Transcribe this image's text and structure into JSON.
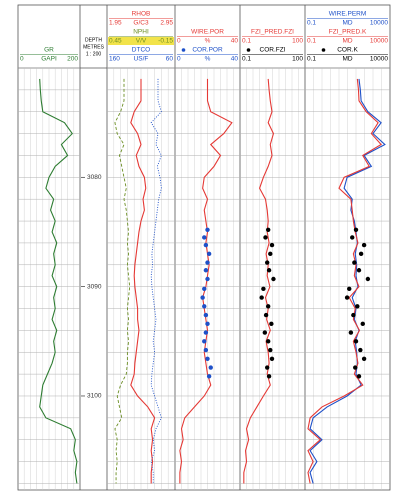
{
  "chart_data": {
    "type": "well-log",
    "ylim": [
      3070,
      3108.6
    ],
    "yticks": [
      3080,
      3090,
      3100
    ],
    "ygrid": [
      3070,
      3072,
      3074,
      3076,
      3078,
      3080,
      3082,
      3084,
      3086,
      3088,
      3090,
      3092,
      3094,
      3096,
      3098,
      3100,
      3102,
      3104,
      3106,
      3108
    ],
    "depth_header": [
      "DEPTH",
      "METRES",
      "1 : 200"
    ],
    "y": [
      3071,
      3072,
      3073,
      3074,
      3075,
      3076,
      3077,
      3078,
      3079,
      3080,
      3081,
      3082,
      3083,
      3084,
      3085,
      3086,
      3087,
      3088,
      3089,
      3090,
      3091,
      3092,
      3093,
      3094,
      3095,
      3096,
      3097,
      3098,
      3099,
      3100,
      3101,
      3102,
      3103,
      3104,
      3105,
      3106,
      3107,
      3108
    ],
    "tracks": [
      {
        "curves": [
          {
            "name": "GR",
            "unit": "GAPI",
            "xlim": [
              0,
              200
            ],
            "color": "#2e7d32",
            "style": "solid",
            "values": [
              70,
              72,
              75,
              80,
              150,
              175,
              140,
              160,
              120,
              100,
              90,
              115,
              105,
              120,
              110,
              125,
              115,
              120,
              110,
              125,
              115,
              120,
              110,
              125,
              115,
              120,
              110,
              95,
              80,
              75,
              70,
              90,
              170,
              185,
              180,
              190,
              185,
              190
            ]
          }
        ]
      },
      {
        "curves": [
          {
            "name": "RHOB",
            "unit": "G/C3",
            "xlim": [
              1.95,
              2.95
            ],
            "color": "#e53935",
            "style": "solid",
            "values": [
              2.45,
              2.45,
              2.45,
              2.35,
              2.3,
              2.4,
              2.45,
              2.38,
              2.42,
              2.5,
              2.52,
              2.48,
              2.5,
              2.45,
              2.42,
              2.4,
              2.38,
              2.36,
              2.35,
              2.36,
              2.38,
              2.4,
              2.4,
              2.42,
              2.4,
              2.38,
              2.36,
              2.35,
              2.3,
              2.4,
              2.55,
              2.65,
              2.6,
              2.62,
              2.6,
              2.62,
              2.6,
              2.6
            ]
          },
          {
            "name": "NPHI",
            "unit": "V/V",
            "xlim": [
              0.45,
              -0.15
            ],
            "color": "#6b8e23",
            "style": "dashed",
            "header_fill": "#f2e34a",
            "values": [
              0.3,
              0.3,
              0.3,
              0.33,
              0.38,
              0.36,
              0.3,
              0.34,
              0.32,
              0.3,
              0.28,
              0.3,
              0.28,
              0.27,
              0.26,
              0.27,
              0.26,
              0.27,
              0.26,
              0.25,
              0.26,
              0.27,
              0.26,
              0.27,
              0.26,
              0.27,
              0.27,
              0.28,
              0.33,
              0.36,
              0.34,
              0.32,
              0.38,
              0.36,
              0.37,
              0.36,
              0.37,
              0.37
            ]
          },
          {
            "name": "DTCO",
            "unit": "US/F",
            "xlim": [
              160,
              60
            ],
            "color": "#1e50c8",
            "style": "dotted",
            "values": [
              85,
              85,
              85,
              80,
              95,
              85,
              88,
              80,
              86,
              82,
              80,
              84,
              86,
              88,
              90,
              92,
              94,
              93,
              95,
              94,
              92,
              90,
              88,
              90,
              92,
              90,
              92,
              94,
              95,
              90,
              85,
              80,
              88,
              92,
              90,
              95,
              92,
              92
            ]
          }
        ]
      },
      {
        "curves": [
          {
            "name": "WIRE.POR",
            "unit": "%",
            "xlim": [
              0,
              40
            ],
            "color": "#e53935",
            "style": "solid",
            "values": [
              20,
              20,
              20,
              22,
              35,
              30,
              22,
              28,
              24,
              18,
              17,
              20,
              18,
              19,
              20,
              19,
              20,
              21,
              20,
              19,
              17,
              18,
              19,
              20,
              19,
              18,
              19,
              20,
              22,
              18,
              12,
              6,
              4,
              5,
              3,
              4,
              3,
              3
            ]
          },
          {
            "name": "COR.POR",
            "unit": "%",
            "xlim": [
              0,
              40
            ],
            "color": "#1e50c8",
            "style": "points",
            "depth": [
              3084.8,
              3085.5,
              3086.2,
              3087,
              3087.8,
              3088.5,
              3089.3,
              3090.2,
              3091,
              3091.8,
              3092.6,
              3093.4,
              3094.2,
              3095,
              3095.8,
              3096.6,
              3097.4,
              3098.2
            ],
            "values": [
              20,
              18,
              19,
              21,
              20,
              19,
              20,
              18,
              17,
              18,
              19,
              20,
              19,
              18,
              19,
              20,
              22,
              21
            ]
          }
        ]
      },
      {
        "curves": [
          {
            "name": "FZI_PRED.FZI",
            "xlim": [
              0.1,
              100
            ],
            "log": true,
            "color": "#e53935",
            "style": "solid",
            "values": [
              2,
              2.2,
              2.5,
              3,
              2,
              3.5,
              2.5,
              3,
              2,
              1.2,
              0.8,
              1.5,
              1.8,
              2,
              1.8,
              2.2,
              1.6,
              2,
              1.8,
              2.4,
              1.5,
              2,
              1.7,
              2.5,
              1.6,
              2,
              2.2,
              1.8,
              2.5,
              1.2,
              0.6,
              0.3,
              0.2,
              0.25,
              0.18,
              0.2,
              0.15,
              0.15
            ]
          },
          {
            "name": "COR.FZI",
            "xlim": [
              0.1,
              100
            ],
            "log": true,
            "color": "#000000",
            "style": "points",
            "depth": [
              3084.8,
              3085.5,
              3086.2,
              3087,
              3087.8,
              3088.5,
              3089.3,
              3090.2,
              3091,
              3091.8,
              3092.6,
              3093.4,
              3094.2,
              3095,
              3095.8,
              3096.6,
              3097.4,
              3098.2
            ],
            "values": [
              2,
              1.5,
              3,
              2.5,
              1.8,
              2.2,
              3.5,
              1.2,
              1,
              2,
              1.6,
              2.8,
              1.4,
              2,
              2.5,
              3,
              1.8,
              2.2
            ]
          }
        ]
      },
      {
        "curves": [
          {
            "name": "WIRE.PERM",
            "unit": "MD",
            "xlim": [
              0.1,
              10000
            ],
            "log": true,
            "color": "#1e50c8",
            "style": "solid",
            "values": [
              150,
              180,
              200,
              500,
              3000,
              1000,
              5000,
              300,
              800,
              30,
              20,
              60,
              50,
              80,
              100,
              120,
              90,
              110,
              100,
              130,
              60,
              100,
              80,
              150,
              90,
              110,
              120,
              100,
              200,
              30,
              2,
              0.3,
              0.2,
              1,
              0.2,
              0.5,
              0.2,
              0.3
            ]
          },
          {
            "name": "FZI_PRED.K",
            "unit": "MD",
            "xlim": [
              0.1,
              10000
            ],
            "log": true,
            "color": "#e53935",
            "style": "solid",
            "values": [
              120,
              140,
              150,
              400,
              2000,
              800,
              3000,
              250,
              600,
              20,
              10,
              50,
              60,
              70,
              90,
              130,
              70,
              100,
              80,
              150,
              40,
              90,
              70,
              160,
              70,
              100,
              130,
              80,
              250,
              20,
              1,
              0.2,
              0.15,
              0.8,
              0.15,
              0.3,
              0.15,
              0.2
            ]
          },
          {
            "name": "COR.K",
            "unit": "MD",
            "xlim": [
              0.1,
              10000
            ],
            "log": true,
            "color": "#000000",
            "style": "points",
            "depth": [
              3084.8,
              3085.5,
              3086.2,
              3087,
              3087.8,
              3088.5,
              3089.3,
              3090.2,
              3091,
              3091.8,
              3092.6,
              3093.4,
              3094.2,
              3095,
              3095.8,
              3096.6,
              3097.4,
              3098.2
            ],
            "values": [
              100,
              60,
              300,
              200,
              80,
              150,
              500,
              40,
              30,
              120,
              70,
              250,
              50,
              100,
              180,
              300,
              90,
              150
            ]
          }
        ]
      }
    ]
  }
}
